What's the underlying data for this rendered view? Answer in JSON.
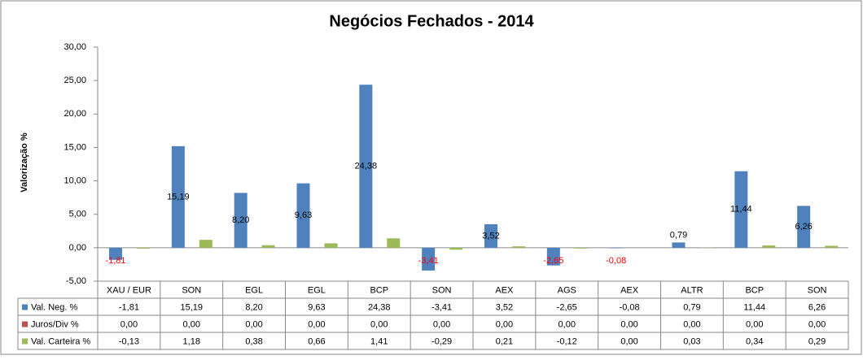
{
  "chart_data": {
    "type": "bar",
    "title": "Negócios Fechados - 2014",
    "y_label": "Valorização %",
    "categories": [
      "XAU / EUR",
      "SON",
      "EGL",
      "EGL",
      "BCP",
      "SON",
      "AEX",
      "AGS",
      "AEX",
      "ALTR",
      "BCP",
      "SON"
    ],
    "series": [
      {
        "name": "Val. Neg. %",
        "color": "#4f81bd",
        "data_labels": true,
        "values": [
          -1.81,
          15.19,
          8.2,
          9.63,
          24.38,
          -3.41,
          3.52,
          -2.65,
          -0.08,
          0.79,
          11.44,
          6.26
        ],
        "value_labels": [
          "-1,81",
          "15,19",
          "8,20",
          "9,63",
          "24,38",
          "-3,41",
          "3,52",
          "-2,65",
          "-0,08",
          "0,79",
          "11,44",
          "6,26"
        ]
      },
      {
        "name": "Juros/Div %",
        "color": "#c0504d",
        "data_labels": false,
        "values": [
          0,
          0,
          0,
          0,
          0,
          0,
          0,
          0,
          0,
          0,
          0,
          0
        ],
        "value_labels": [
          "0,00",
          "0,00",
          "0,00",
          "0,00",
          "0,00",
          "0,00",
          "0,00",
          "0,00",
          "0,00",
          "0,00",
          "0,00",
          "0,00"
        ]
      },
      {
        "name": "Val. Carteira %",
        "color": "#9bbb59",
        "data_labels": false,
        "values": [
          -0.13,
          1.18,
          0.38,
          0.66,
          1.41,
          -0.29,
          0.21,
          -0.12,
          0.0,
          0.03,
          0.34,
          0.29
        ],
        "value_labels": [
          "-0,13",
          "1,18",
          "0,38",
          "0,66",
          "1,41",
          "-0,29",
          "0,21",
          "-0,12",
          "0,00",
          "0,03",
          "0,34",
          "0,29"
        ]
      }
    ],
    "negative_label_color": "#ff0000",
    "ylim": [
      -5,
      30
    ],
    "yticks": [
      {
        "value": -5,
        "label": "-5,00"
      },
      {
        "value": 0,
        "label": "0,00"
      },
      {
        "value": 5,
        "label": "5,00"
      },
      {
        "value": 10,
        "label": "10,00"
      },
      {
        "value": 15,
        "label": "15,00"
      },
      {
        "value": 20,
        "label": "20,00"
      },
      {
        "value": 25,
        "label": "25,00"
      },
      {
        "value": 30,
        "label": "30,00"
      }
    ],
    "grid": false
  }
}
